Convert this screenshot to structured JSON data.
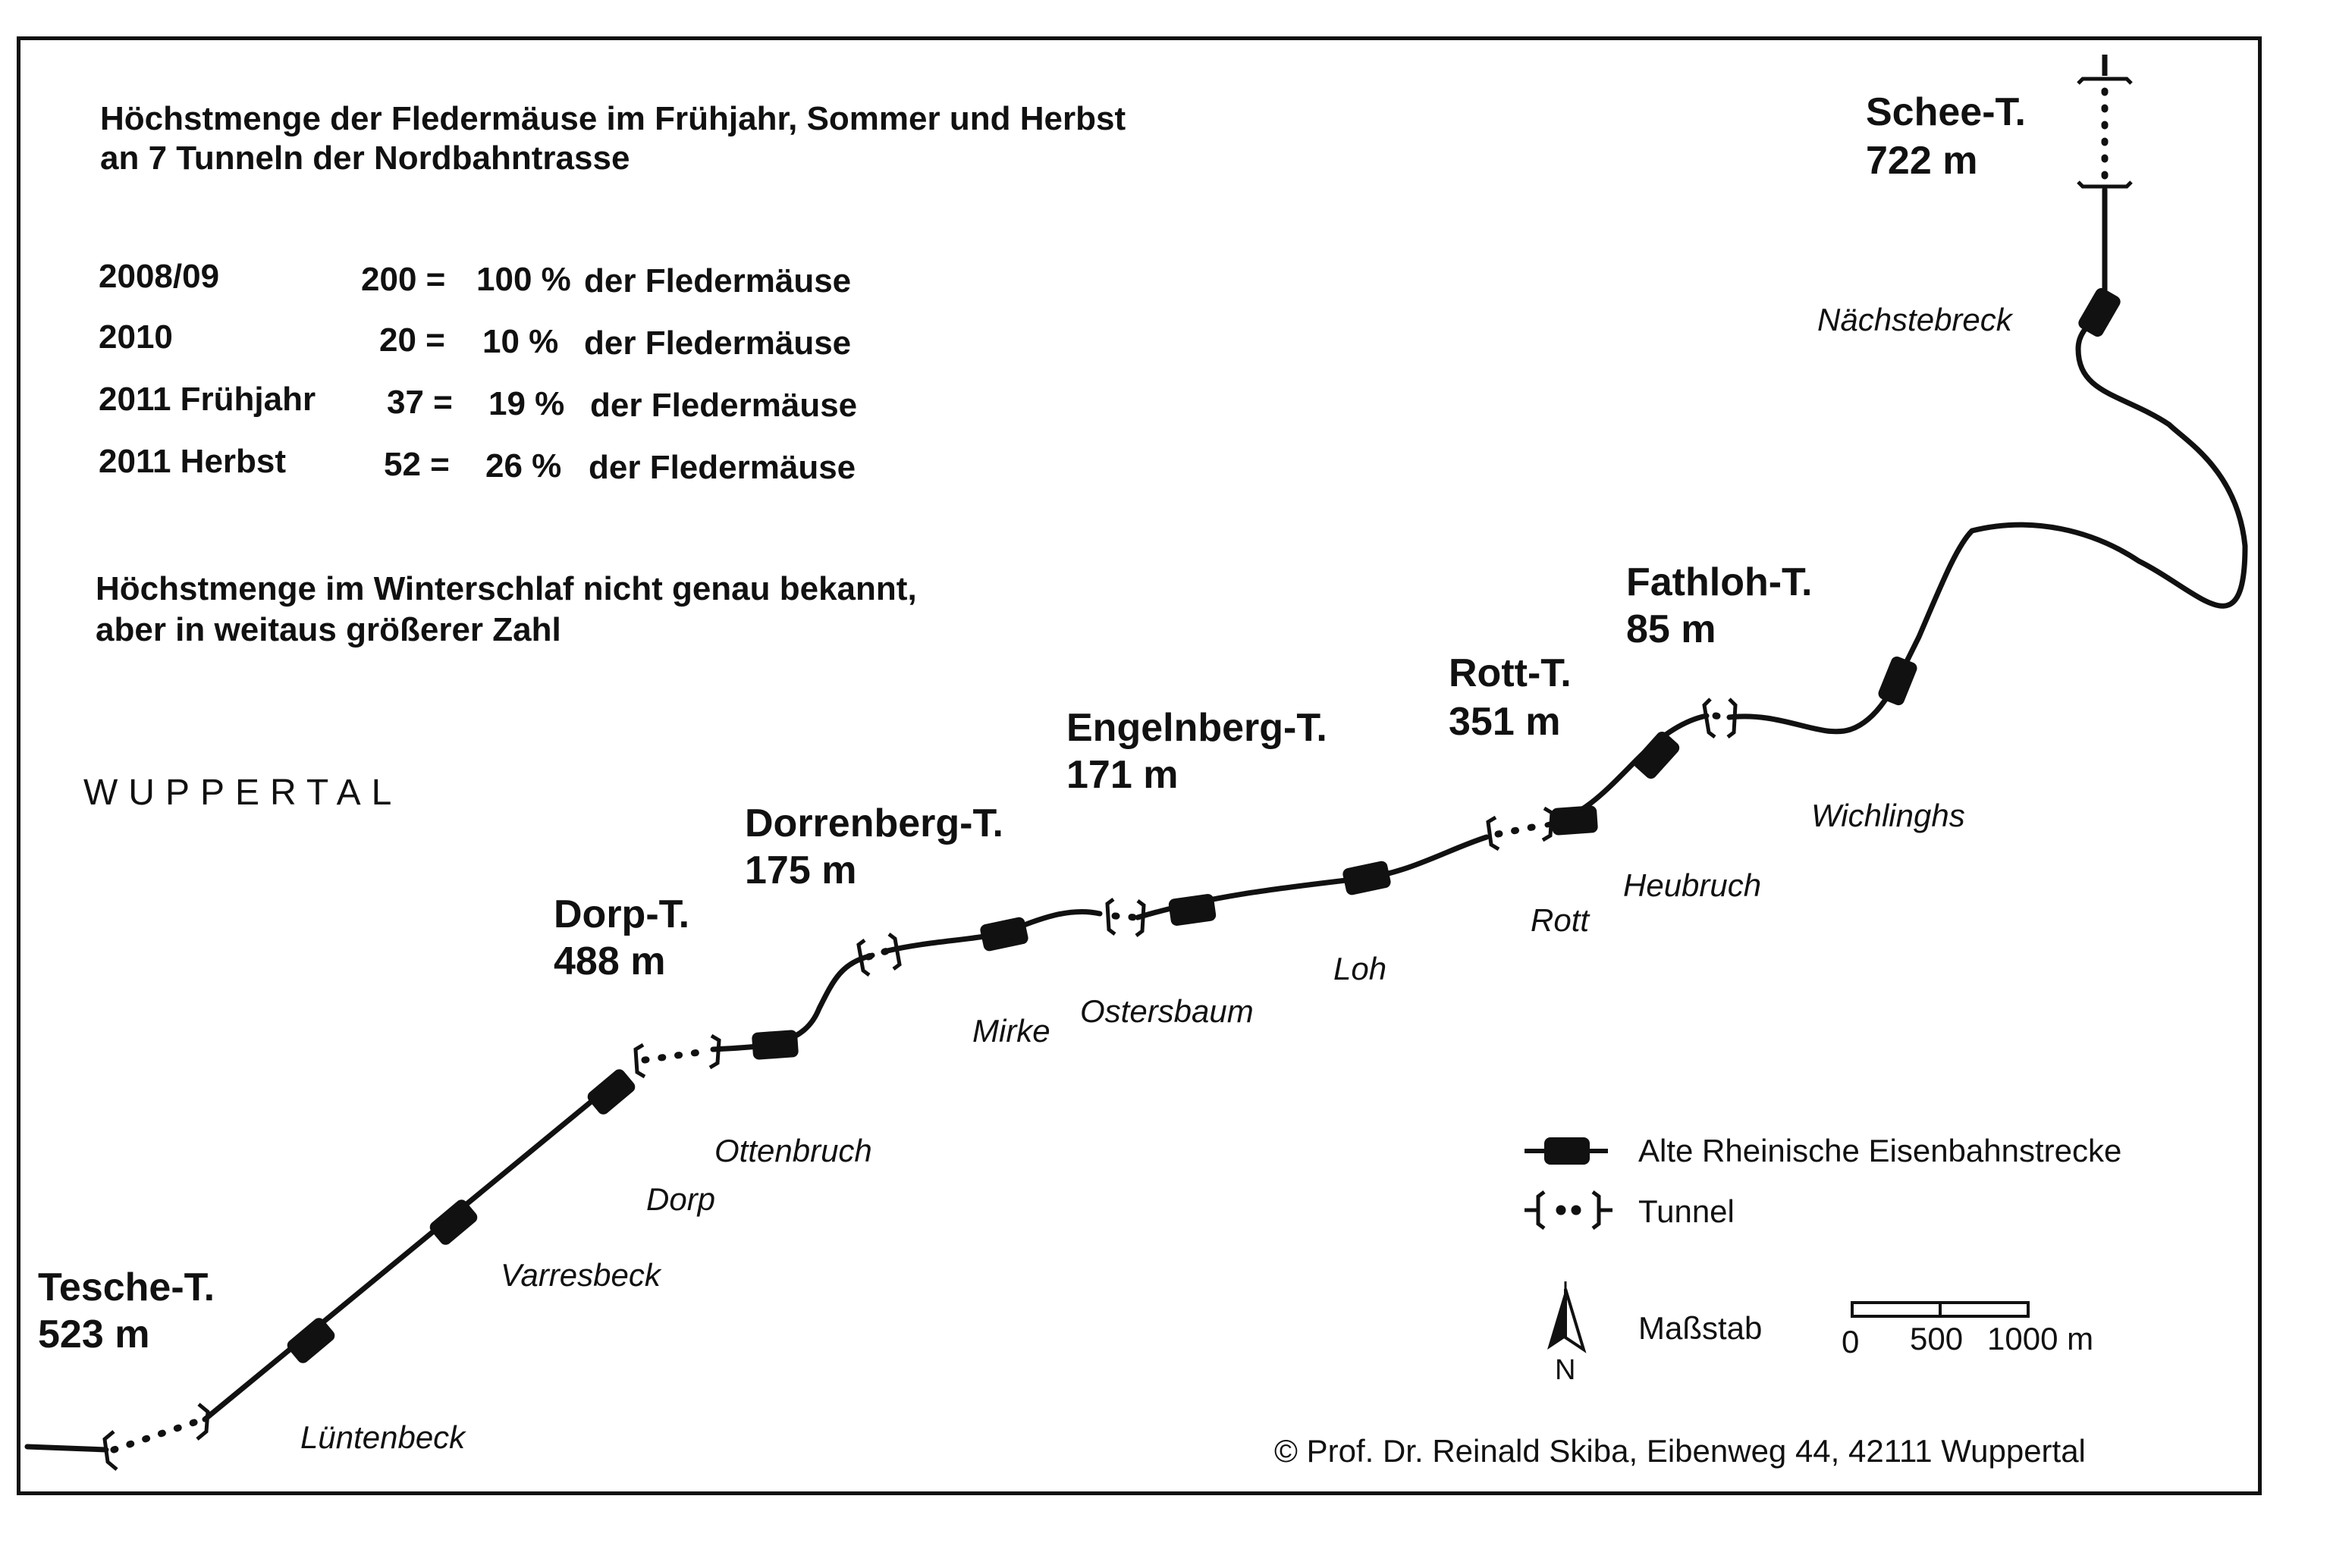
{
  "title": {
    "line1": "Höchstmenge der Fledermäuse im Frühjahr, Sommer und Herbst",
    "line2": "an 7 Tunneln der Nordbahntrasse"
  },
  "stats": [
    {
      "period": "2008/09",
      "count": "200 =",
      "percent": "100 %",
      "label": "der Fledermäuse"
    },
    {
      "period": "2010",
      "count": "20 =",
      "percent": "10 %",
      "label": "der Fledermäuse"
    },
    {
      "period": "2011 Frühjahr",
      "count": "37 =",
      "percent": "19 %",
      "label": "der Fledermäuse"
    },
    {
      "period": "2011 Herbst",
      "count": "52 =",
      "percent": "26 %",
      "label": "der Fledermäuse"
    }
  ],
  "winter_note": {
    "line1": "Höchstmenge im Winterschlaf nicht genau bekannt,",
    "line2": "aber in weitaus größerer Zahl"
  },
  "city": "WUPPERTAL",
  "tunnels": [
    {
      "name": "Schee-T.",
      "length": "722 m"
    },
    {
      "name": "Fathloh-T.",
      "length": "85 m"
    },
    {
      "name": "Rott-T.",
      "length": "351 m"
    },
    {
      "name": "Engelnberg-T.",
      "length": "171 m"
    },
    {
      "name": "Dorrenberg-T.",
      "length": "175 m"
    },
    {
      "name": "Dorp-T.",
      "length": "488 m"
    },
    {
      "name": "Tesche-T.",
      "length": "523 m"
    }
  ],
  "places": {
    "naechstebreck": "Nächstebreck",
    "wichlinghs": "Wichlinghs",
    "heubruch": "Heubruch",
    "rott": "Rott",
    "loh": "Loh",
    "ostersbaum": "Ostersbaum",
    "mirke": "Mirke",
    "ottenbruch": "Ottenbruch",
    "dorp": "Dorp",
    "varresbeck": "Varresbeck",
    "luentenbeck": "Lüntenbeck"
  },
  "legend": {
    "railway": "Alte Rheinische Eisenbahnstrecke",
    "tunnel": "Tunnel",
    "scale_label": "Maßstab",
    "scale_ticks": [
      "0",
      "500",
      "1000 m"
    ],
    "north": "N"
  },
  "copyright": "© Prof. Dr. Reinald Skiba, Eibenweg 44, 42111 Wuppertal",
  "colors": {
    "ink": "#111111",
    "paper": "#ffffff"
  }
}
